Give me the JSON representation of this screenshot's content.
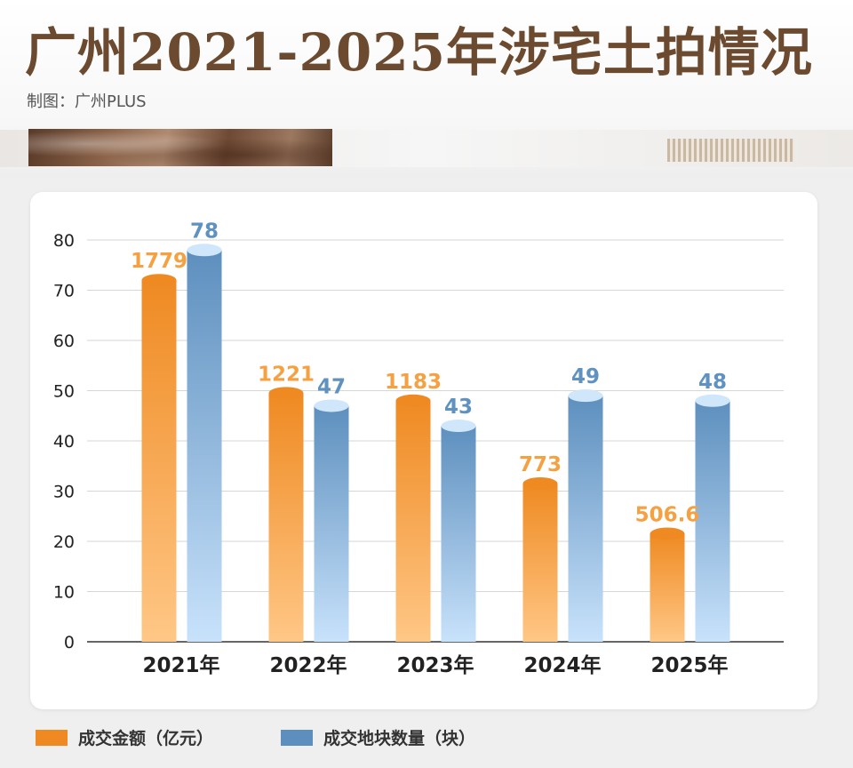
{
  "title": "广州2021-2025年涉宅土拍情况",
  "credit": "制图：广州PLUS",
  "colors": {
    "amount_top": "#ef8a22",
    "amount_bottom": "#ffc786",
    "amount_label": "#f5a142",
    "plots_top": "#5d8fbe",
    "plots_bottom": "#c8e2fb",
    "plots_label": "#5f92c0"
  },
  "chart_data": {
    "type": "bar",
    "categories": [
      "2021年",
      "2022年",
      "2023年",
      "2024年",
      "2025年"
    ],
    "series": [
      {
        "name": "成交金额（亿元）",
        "values": [
          1779,
          1221,
          1183,
          773,
          506.6
        ],
        "display_labels": [
          "1779",
          "1221",
          "1183",
          "773",
          "506.6"
        ],
        "bar_scale_values": [
          72,
          49.5,
          48,
          31.5,
          21.5
        ]
      },
      {
        "name": "成交地块数量（块）",
        "values": [
          78,
          47,
          43,
          49,
          48
        ],
        "display_labels": [
          "78",
          "47",
          "43",
          "49",
          "48"
        ],
        "bar_scale_values": [
          78,
          47,
          43,
          49,
          48
        ]
      }
    ],
    "yticks": [
      "0",
      "10",
      "20",
      "30",
      "40",
      "50",
      "60",
      "70",
      "80"
    ],
    "ylim": [
      0,
      80
    ],
    "grid": true,
    "legend": "bottom-left"
  }
}
